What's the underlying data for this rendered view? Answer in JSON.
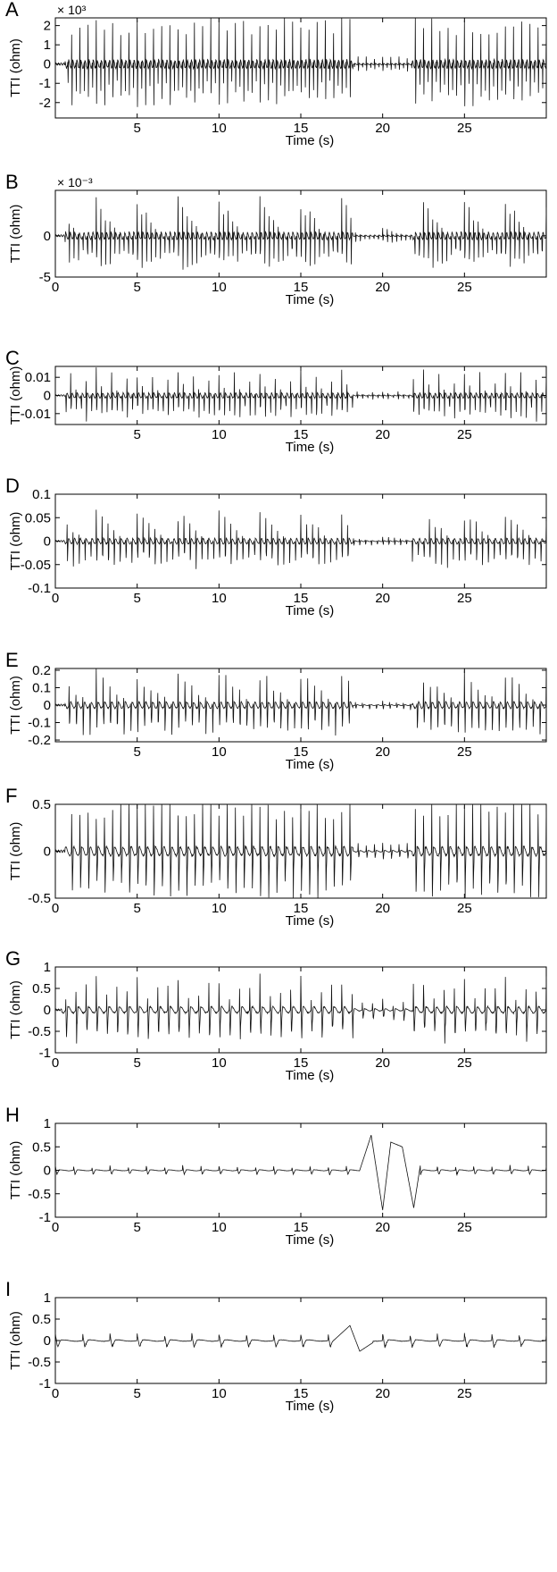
{
  "chart_data": [
    {
      "type": "line",
      "panel": "A",
      "xlabel": "Time (s)",
      "ylabel": "TTI (ohm)",
      "exponent": "× 10³",
      "xlim": [
        0,
        30
      ],
      "ylim": [
        -2.8,
        2.4
      ],
      "xticks": [
        5,
        10,
        15,
        20,
        25
      ],
      "xtick_labels": [
        "5",
        "10",
        "15",
        "20",
        "25"
      ],
      "yticks": [
        2,
        1,
        0,
        -1,
        -2
      ],
      "ytick_labels": [
        "2",
        "1",
        "0",
        "-1",
        "-2"
      ],
      "signal": {
        "freq_hz": 4.0,
        "start_s": 0.6,
        "amplitude": 2.0,
        "quiet_window_s": [
          18.2,
          21.8
        ],
        "quiet_amplitude": 0.35
      }
    },
    {
      "type": "line",
      "panel": "B",
      "xlabel": "Time (s)",
      "ylabel": "TTI (ohm)",
      "exponent": "× 10⁻³",
      "xlim": [
        0,
        30
      ],
      "ylim": [
        -5,
        5.5
      ],
      "xticks": [
        0,
        5,
        10,
        15,
        20,
        25
      ],
      "xtick_labels": [
        "0",
        "5",
        "10",
        "15",
        "20",
        "25"
      ],
      "yticks": [
        0,
        -5
      ],
      "ytick_labels": [
        "0",
        "-5"
      ],
      "signal": {
        "freq_hz": 3.6,
        "start_s": 0.6,
        "amplitude": 4.0,
        "quiet_window_s": [
          18.2,
          21.8
        ],
        "quiet_amplitude": 0.8
      }
    },
    {
      "type": "line",
      "panel": "C",
      "xlabel": "Time (s)",
      "ylabel": "TTI (ohm)",
      "exponent": "",
      "xlim": [
        0,
        30
      ],
      "ylim": [
        -0.016,
        0.016
      ],
      "xticks": [
        5,
        10,
        15,
        20,
        25
      ],
      "xtick_labels": [
        "5",
        "10",
        "15",
        "20",
        "25"
      ],
      "yticks": [
        0.01,
        0,
        -0.01
      ],
      "ytick_labels": [
        "0.01",
        "0",
        "-0.01"
      ],
      "signal": {
        "freq_hz": 3.2,
        "start_s": 0.6,
        "amplitude": 0.013,
        "quiet_window_s": [
          18.2,
          21.8
        ],
        "quiet_amplitude": 0.0025
      }
    },
    {
      "type": "line",
      "panel": "D",
      "xlabel": "Time (s)",
      "ylabel": "TTI (ohm)",
      "exponent": "",
      "xlim": [
        0,
        30
      ],
      "ylim": [
        -0.1,
        0.1
      ],
      "xticks": [
        0,
        5,
        10,
        15,
        20,
        25
      ],
      "xtick_labels": [
        "0",
        "5",
        "10",
        "15",
        "20",
        "25"
      ],
      "yticks": [
        0.1,
        0.05,
        0,
        -0.05,
        -0.1
      ],
      "ytick_labels": [
        "0.1",
        "0.05",
        "0",
        "-0.05",
        "-0.1"
      ],
      "signal": {
        "freq_hz": 2.8,
        "start_s": 0.6,
        "amplitude": 0.055,
        "quiet_window_s": [
          18.2,
          21.8
        ],
        "quiet_amplitude": 0.01
      }
    },
    {
      "type": "line",
      "panel": "E",
      "xlabel": "Time (s)",
      "ylabel": "TTI (ohm)",
      "exponent": "",
      "xlim": [
        0,
        30
      ],
      "ylim": [
        -0.21,
        0.21
      ],
      "xticks": [
        5,
        10,
        15,
        20,
        25
      ],
      "xtick_labels": [
        "5",
        "10",
        "15",
        "20",
        "25"
      ],
      "yticks": [
        0.2,
        0.1,
        0,
        -0.1,
        -0.2
      ],
      "ytick_labels": [
        "0.2",
        "0.1",
        "0",
        "-0.1",
        "-0.2"
      ],
      "signal": {
        "freq_hz": 2.4,
        "start_s": 0.6,
        "amplitude": 0.17,
        "quiet_window_s": [
          18.2,
          21.8
        ],
        "quiet_amplitude": 0.025
      }
    },
    {
      "type": "line",
      "panel": "F",
      "xlabel": "Time (s)",
      "ylabel": "TTI (ohm)",
      "exponent": "",
      "xlim": [
        0,
        30
      ],
      "ylim": [
        -0.5,
        0.5
      ],
      "xticks": [
        0,
        5,
        10,
        15,
        20,
        25
      ],
      "xtick_labels": [
        "0",
        "5",
        "10",
        "15",
        "20",
        "25"
      ],
      "yticks": [
        0.5,
        0,
        -0.5
      ],
      "ytick_labels": [
        "0.5",
        "0",
        "-0.5"
      ],
      "signal": {
        "freq_hz": 2.0,
        "start_s": 0.6,
        "amplitude": 0.45,
        "quiet_window_s": [
          18.2,
          21.8
        ],
        "quiet_amplitude": 0.08
      }
    },
    {
      "type": "line",
      "panel": "G",
      "xlabel": "Time (s)",
      "ylabel": "TTI (ohm)",
      "exponent": "",
      "xlim": [
        0,
        30
      ],
      "ylim": [
        -1,
        1
      ],
      "xticks": [
        0,
        5,
        10,
        15,
        20,
        25
      ],
      "xtick_labels": [
        "0",
        "5",
        "10",
        "15",
        "20",
        "25"
      ],
      "yticks": [
        1,
        0.5,
        0,
        -0.5,
        -1
      ],
      "ytick_labels": [
        "1",
        "0.5",
        "0",
        "-0.5",
        "-1"
      ],
      "signal": {
        "freq_hz": 1.6,
        "start_s": 0.4,
        "amplitude": 0.7,
        "quiet_window_s": [
          18.2,
          21.8
        ],
        "quiet_amplitude": 0.25
      }
    },
    {
      "type": "line",
      "panel": "H",
      "xlabel": "Time (s)",
      "ylabel": "TTI (ohm)",
      "exponent": "",
      "xlim": [
        0,
        30
      ],
      "ylim": [
        -1,
        1
      ],
      "xticks": [
        0,
        5,
        10,
        15,
        20,
        25
      ],
      "xtick_labels": [
        "0",
        "5",
        "10",
        "15",
        "20",
        "25"
      ],
      "yticks": [
        1,
        0.5,
        0,
        -0.5,
        -1
      ],
      "ytick_labels": [
        "1",
        "0.5",
        "0",
        "-0.5",
        "-1"
      ],
      "signal": {
        "freq_hz": 0.9,
        "start_s": 0.0,
        "amplitude": 0.1,
        "quiet_window_s": [],
        "quiet_amplitude": 0,
        "burst": [
          [
            18.6,
            0.0
          ],
          [
            19.3,
            0.75
          ],
          [
            20.0,
            -0.85
          ],
          [
            20.5,
            0.6
          ],
          [
            21.2,
            0.5
          ],
          [
            21.9,
            -0.8
          ],
          [
            22.3,
            0.1
          ]
        ]
      }
    },
    {
      "type": "line",
      "panel": "I",
      "xlabel": "Time (s)",
      "ylabel": "TTI (ohm)",
      "exponent": "",
      "xlim": [
        0,
        30
      ],
      "ylim": [
        -1,
        1
      ],
      "xticks": [
        0,
        5,
        10,
        15,
        20,
        25
      ],
      "xtick_labels": [
        "0",
        "5",
        "10",
        "15",
        "20",
        "25"
      ],
      "yticks": [
        1,
        0.5,
        0,
        -0.5,
        -1
      ],
      "ytick_labels": [
        "1",
        "0.5",
        "0",
        "-0.5",
        "-1"
      ],
      "signal": {
        "freq_hz": 0.6,
        "start_s": 0.0,
        "amplitude": 0.16,
        "quiet_window_s": [],
        "quiet_amplitude": 0,
        "burst": [
          [
            17.0,
            0.0
          ],
          [
            18.0,
            0.35
          ],
          [
            18.6,
            -0.25
          ],
          [
            19.4,
            -0.05
          ]
        ]
      }
    }
  ]
}
